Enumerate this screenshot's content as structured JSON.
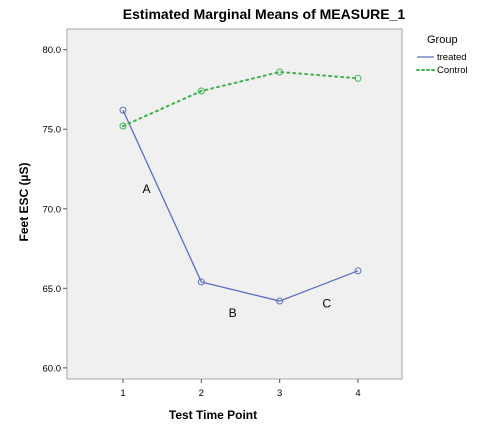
{
  "chart_data": {
    "type": "line",
    "title": "Estimated Marginal Means of MEASURE_1",
    "xlabel": "Test Time Point",
    "ylabel": "Feet ESC (µS)",
    "categories": [
      "1",
      "2",
      "3",
      "4"
    ],
    "ylim": [
      59.3,
      81.3
    ],
    "yticks": [
      "60.0",
      "65.0",
      "70.0",
      "75.0",
      "80.0"
    ],
    "grid": false,
    "legend": {
      "title": "Group",
      "placement": "right"
    },
    "series": [
      {
        "name": "treated",
        "values": [
          76.2,
          65.4,
          64.2,
          66.1
        ],
        "color": "#5a6fc0",
        "line_style": "solid",
        "marker": "open-circle"
      },
      {
        "name": "Control",
        "values": [
          75.2,
          77.4,
          78.6,
          78.2
        ],
        "color": "#3fb34f",
        "line_style": "dotted",
        "marker": "open-circle"
      }
    ],
    "annotations": [
      {
        "text": "A",
        "x": 1.3,
        "y": 71.0
      },
      {
        "text": "B",
        "x": 2.4,
        "y": 63.2
      },
      {
        "text": "C",
        "x": 3.6,
        "y": 63.8
      }
    ]
  }
}
